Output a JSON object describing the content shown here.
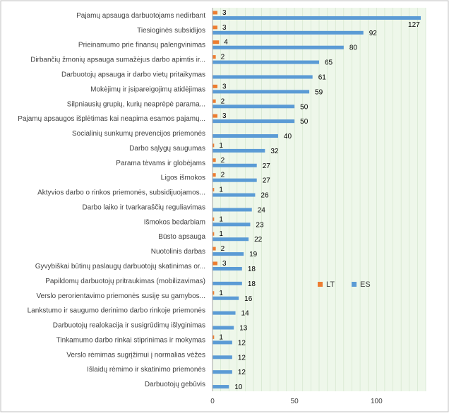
{
  "chart_data": {
    "type": "bar",
    "orientation": "horizontal",
    "title": "",
    "xlabel": "",
    "ylabel": "",
    "xlim": [
      0,
      130
    ],
    "x_ticks": [
      0,
      50,
      100
    ],
    "grid": "vertical minor lines",
    "legend_position": "center-right",
    "categories": [
      "Pajamų apsauga darbuotojams nedirbant",
      "Tiesioginės subsidijos",
      "Prieinamumo prie finansų palengvinimas",
      "Dirbančių žmonių apsauga sumažėjus darbo apimtis ir...",
      "Darbuotojų apsauga ir darbo vietų pritaikymas",
      "Mokėjimų ir įsipareigojimų atidėjimas",
      "Silpniausių grupių, kurių neaprėpė parama...",
      "Pajamų apsaugos išplėtimas kai neapima esamos pajamų...",
      "Socialinių sunkumų prevencijos priemonės",
      "Darbo sąlygų saugumas",
      "Parama tėvams ir globėjams",
      "Ligos išmokos",
      "Aktyvios darbo o rinkos priemonės, subsidijuojamos...",
      "Darbo laiko ir tvarkaraščių reguliavimas",
      "Išmokos bedarbiam",
      "Būsto apsauga",
      "Nuotolinis darbas",
      "Gyvybiškai būtinų paslaugų darbuotojų skatinimas or...",
      "Papildomų darbuotojų pritraukimas (mobilizavimas)",
      "Verslo perorientavimo priemonės susiję su gamybos...",
      "Lankstumo ir saugumo derinimo darbo rinkoje priemonės",
      "Darbuotojų realokacija ir susigrūdimų išlyginimas",
      "Tinkamumo darbo rinkai stiprinimas ir mokymas",
      "Verslo rėmimas sugrįžimui į normalias vėžes",
      "Išlaidų rėmimo ir skatinimo priemonės",
      "Darbuotojų gebūvis"
    ],
    "series": [
      {
        "name": "LT",
        "color": "#ed7d31",
        "values": [
          3,
          3,
          4,
          2,
          null,
          3,
          2,
          3,
          null,
          1,
          2,
          2,
          1,
          null,
          1,
          1,
          2,
          3,
          null,
          1,
          null,
          null,
          1,
          null,
          null,
          null
        ]
      },
      {
        "name": "ES",
        "color": "#5b9bd5",
        "values": [
          127,
          92,
          80,
          65,
          61,
          59,
          50,
          50,
          40,
          32,
          27,
          27,
          26,
          24,
          23,
          22,
          19,
          18,
          18,
          16,
          14,
          13,
          12,
          12,
          12,
          10
        ]
      }
    ]
  }
}
